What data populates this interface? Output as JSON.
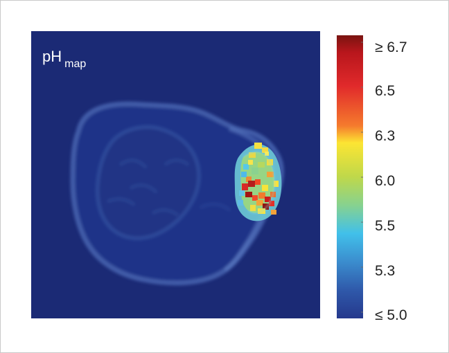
{
  "figure": {
    "map_label_main": "pH",
    "map_label_sub": "map"
  },
  "colorbar": {
    "tick_labels": [
      "≥ 6.7",
      "6.5",
      "6.3",
      "6.0",
      "5.5",
      "5.3",
      "≤ 5.0"
    ],
    "colors": {
      "background": "#1b2a75",
      "low": "#25388c",
      "mid_low": "#41c0ea",
      "mid": "#bfd84a",
      "mid_high": "#fce533",
      "high": "#e12a2b",
      "max": "#7a1410"
    }
  }
}
